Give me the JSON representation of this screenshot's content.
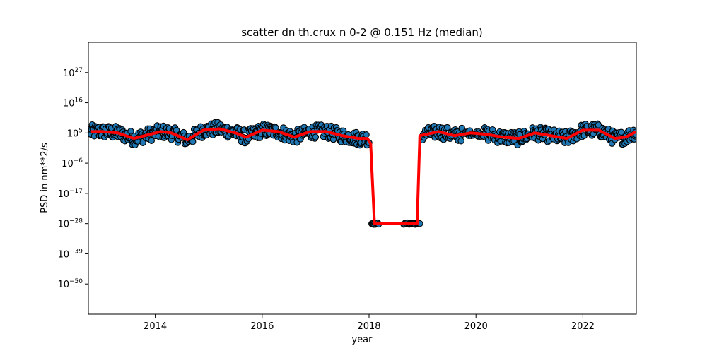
{
  "chart_data": {
    "type": "scatter",
    "title": "scatter dn th.crux n 0-2 @ 0.151 Hz (median)",
    "xlabel": "year",
    "ylabel": "PSD in nm**2/s",
    "y_scale": "log",
    "xlim": [
      "2012-10-01",
      "2023-01-01"
    ],
    "ylim_log10": [
      -61,
      38
    ],
    "x_ticks": [
      "2014",
      "2016",
      "2018",
      "2020",
      "2022"
    ],
    "y_ticks": [
      {
        "exp": 27,
        "label": "27"
      },
      {
        "exp": 16,
        "label": "16"
      },
      {
        "exp": 5,
        "label": "5"
      },
      {
        "exp": -6,
        "label": "−6"
      },
      {
        "exp": -17,
        "label": "−17"
      },
      {
        "exp": -28,
        "label": "−28"
      },
      {
        "exp": -39,
        "label": "−39"
      },
      {
        "exp": -50,
        "label": "−50"
      }
    ],
    "y_tick_base": "10",
    "colors": {
      "points": "#1f77b4",
      "point_edge": "#000000",
      "median_line": "#ff0000"
    },
    "series": [
      {
        "kind": "median_line",
        "x_year": [
          2012.8,
          2013.0,
          2013.3,
          2013.6,
          2013.9,
          2014.1,
          2014.3,
          2014.6,
          2014.9,
          2015.2,
          2015.5,
          2015.7,
          2016.0,
          2016.3,
          2016.6,
          2016.9,
          2017.2,
          2017.5,
          2017.8,
          2017.97,
          2018.03,
          2018.1,
          2018.2,
          2018.65,
          2018.9,
          2018.95,
          2019.3,
          2019.6,
          2019.9,
          2020.2,
          2020.5,
          2020.8,
          2021.1,
          2021.4,
          2021.7,
          2022.0,
          2022.3,
          2022.6,
          2022.8,
          2023.0
        ],
        "y_log10": [
          5.5,
          5.5,
          5.0,
          3.0,
          4.5,
          5.5,
          5.0,
          2.5,
          6.0,
          6.5,
          5.0,
          3.5,
          6.0,
          5.5,
          3.5,
          5.5,
          5.5,
          4.0,
          3.0,
          3.0,
          1.0,
          -28,
          -28,
          -28,
          -28,
          4.0,
          5.5,
          4.0,
          5.0,
          4.5,
          3.5,
          3.0,
          5.0,
          4.0,
          3.0,
          6.0,
          6.0,
          3.0,
          3.5,
          5.5
        ]
      },
      {
        "kind": "points_band",
        "segments": [
          {
            "start_year": 2012.78,
            "end_year": 2018.0,
            "center_log10": 4.5,
            "spread_log10": 2.5
          },
          {
            "start_year": 2018.05,
            "end_year": 2018.18,
            "center_log10": -28,
            "spread_log10": 0.3
          },
          {
            "start_year": 2018.65,
            "end_year": 2018.95,
            "center_log10": -28,
            "spread_log10": 0.3
          },
          {
            "start_year": 2019.0,
            "end_year": 2019.75,
            "center_log10": 5.0,
            "spread_log10": 2.5
          },
          {
            "start_year": 2019.8,
            "end_year": 2020.15,
            "center_log10": 6.0,
            "spread_log10": 1.0
          },
          {
            "start_year": 2020.15,
            "end_year": 2023.0,
            "center_log10": 4.5,
            "spread_log10": 2.5
          }
        ]
      }
    ]
  }
}
